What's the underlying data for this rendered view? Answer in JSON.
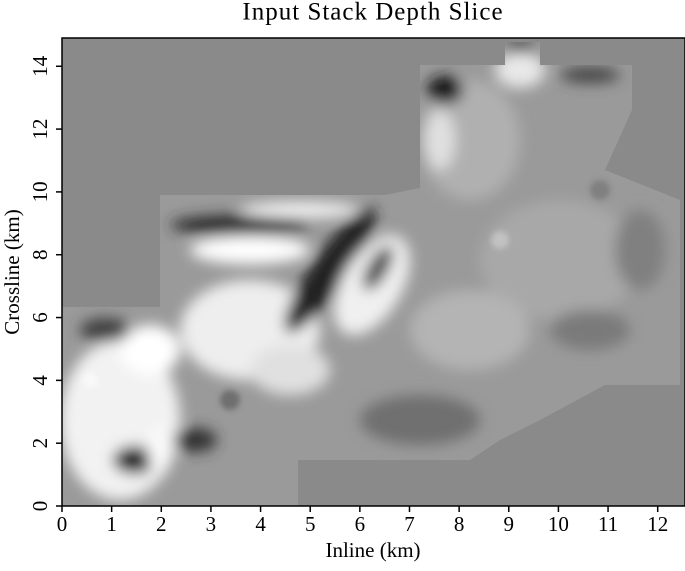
{
  "chart_data": {
    "type": "image",
    "title": "Input Stack Depth Slice",
    "x_label": "Inline (km)",
    "y_label": "Crossline (km)",
    "xlim": [
      0,
      12.55
    ],
    "ylim": [
      0,
      14.9
    ],
    "xticks": [
      0,
      1,
      2,
      3,
      4,
      5,
      6,
      7,
      8,
      9,
      10,
      11,
      12
    ],
    "yticks": [
      0,
      2,
      4,
      6,
      8,
      10,
      12,
      14
    ]
  }
}
